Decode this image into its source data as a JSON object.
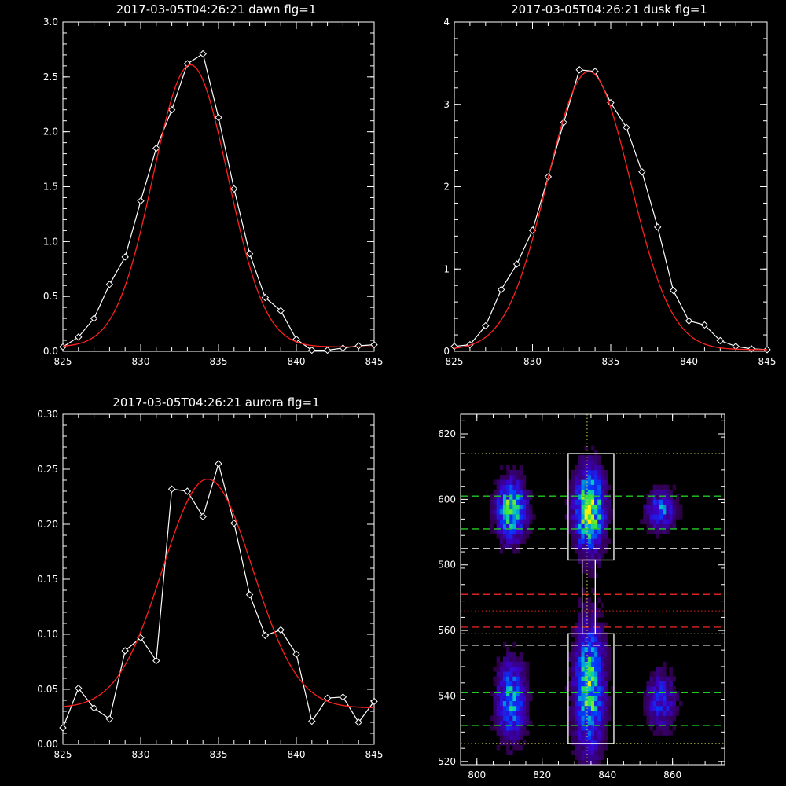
{
  "colors": {
    "background": "#000000",
    "axes": "#ffffff",
    "data": "#ffffff",
    "fit": "#ff2020",
    "guide_green": "#22cc22",
    "guide_red": "#dd2222",
    "guide_white": "#ffffff",
    "guide_yellow": "#dddd55"
  },
  "chart_data": [
    {
      "type": "line",
      "title": "2017-03-05T04:26:21 dawn flg=1",
      "xlim": [
        825,
        845
      ],
      "ylim": [
        0,
        3.0
      ],
      "xticks": [
        "825",
        "830",
        "835",
        "840",
        "845"
      ],
      "yticks": [
        "0.0",
        "0.5",
        "1.0",
        "1.5",
        "2.0",
        "2.5",
        "3.0"
      ],
      "series": [
        {
          "style": "data",
          "x": [
            825,
            826,
            827,
            828,
            829,
            830,
            831,
            832,
            833,
            834,
            835,
            836,
            837,
            838,
            839,
            840,
            841,
            842,
            843,
            844,
            845
          ],
          "y": [
            0.04,
            0.13,
            0.3,
            0.61,
            0.86,
            1.37,
            1.85,
            2.2,
            2.62,
            2.71,
            2.13,
            1.48,
            0.89,
            0.49,
            0.37,
            0.11,
            0.01,
            0.01,
            0.03,
            0.05,
            0.06
          ]
        },
        {
          "style": "fit",
          "gauss": {
            "a": 2.57,
            "mu": 833.2,
            "sigma": 2.4,
            "c": 0.04
          }
        }
      ]
    },
    {
      "type": "line",
      "title": "2017-03-05T04:26:21 dusk flg=1",
      "xlim": [
        825,
        845
      ],
      "ylim": [
        0,
        4
      ],
      "xticks": [
        "825",
        "830",
        "835",
        "840",
        "845"
      ],
      "yticks": [
        "0",
        "1",
        "2",
        "3",
        "4"
      ],
      "series": [
        {
          "style": "data",
          "x": [
            825,
            826,
            827,
            828,
            829,
            830,
            831,
            832,
            833,
            834,
            835,
            836,
            837,
            838,
            839,
            840,
            841,
            842,
            843,
            844,
            845
          ],
          "y": [
            0.06,
            0.08,
            0.31,
            0.75,
            1.06,
            1.47,
            2.12,
            2.78,
            3.42,
            3.4,
            3.02,
            2.72,
            2.18,
            1.51,
            0.74,
            0.37,
            0.32,
            0.13,
            0.06,
            0.03,
            0.02
          ]
        },
        {
          "style": "fit",
          "gauss": {
            "a": 3.38,
            "mu": 833.6,
            "sigma": 2.65,
            "c": 0.02
          }
        }
      ]
    },
    {
      "type": "line",
      "title": "2017-03-05T04:26:21 aurora flg=1",
      "xlim": [
        825,
        845
      ],
      "ylim": [
        0,
        0.3
      ],
      "xticks": [
        "825",
        "830",
        "835",
        "840",
        "845"
      ],
      "yticks": [
        "0.00",
        "0.05",
        "0.10",
        "0.15",
        "0.20",
        "0.25",
        "0.30"
      ],
      "series": [
        {
          "style": "data",
          "x": [
            825,
            826,
            827,
            828,
            829,
            830,
            831,
            832,
            833,
            834,
            835,
            836,
            837,
            838,
            839,
            840,
            841,
            842,
            843,
            844,
            845
          ],
          "y": [
            0.015,
            0.051,
            0.033,
            0.023,
            0.085,
            0.097,
            0.076,
            0.232,
            0.23,
            0.207,
            0.255,
            0.201,
            0.136,
            0.099,
            0.104,
            0.082,
            0.021,
            0.042,
            0.043,
            0.02,
            0.039
          ]
        },
        {
          "style": "fit",
          "gauss": {
            "a": 0.208,
            "mu": 834.3,
            "sigma": 2.9,
            "c": 0.033
          }
        }
      ]
    },
    {
      "type": "heatmap",
      "title": "",
      "xlim": [
        795,
        876
      ],
      "ylim": [
        519,
        626
      ],
      "xticks": [
        "800",
        "820",
        "840",
        "860"
      ],
      "yticks": [
        "520",
        "540",
        "560",
        "580",
        "600",
        "620"
      ],
      "blobs": [
        {
          "x": 810,
          "y": 596,
          "sx": 3.0,
          "sy": 6.0,
          "amp": 0.8
        },
        {
          "x": 834,
          "y": 596,
          "sx": 3.0,
          "sy": 8.0,
          "amp": 1.0
        },
        {
          "x": 856,
          "y": 596,
          "sx": 3.0,
          "sy": 4.0,
          "amp": 0.5
        },
        {
          "x": 810,
          "y": 538,
          "sx": 3.0,
          "sy": 8.0,
          "amp": 0.6
        },
        {
          "x": 834,
          "y": 542,
          "sx": 3.0,
          "sy": 13.0,
          "amp": 0.8
        },
        {
          "x": 856,
          "y": 538,
          "sx": 3.0,
          "sy": 6.0,
          "amp": 0.4
        }
      ],
      "boxes": [
        {
          "x0": 828,
          "x1": 842,
          "y0": 581.5,
          "y1": 614
        },
        {
          "x0": 828,
          "x1": 842,
          "y0": 525.5,
          "y1": 559
        },
        {
          "x0": 832.3,
          "x1": 836.3,
          "y0": 559,
          "y1": 581.5
        }
      ],
      "hlines": [
        {
          "y": 614,
          "style": "dotted",
          "color": "guide_yellow"
        },
        {
          "y": 601,
          "style": "dashed",
          "color": "guide_green"
        },
        {
          "y": 591,
          "style": "dashed",
          "color": "guide_green"
        },
        {
          "y": 585,
          "style": "dashed",
          "color": "guide_white"
        },
        {
          "y": 581.5,
          "style": "dotted",
          "color": "guide_yellow"
        },
        {
          "y": 571,
          "style": "dashed",
          "color": "guide_red"
        },
        {
          "y": 566,
          "style": "dotted",
          "color": "guide_red"
        },
        {
          "y": 561,
          "style": "dashed",
          "color": "guide_red"
        },
        {
          "y": 559,
          "style": "dotted",
          "color": "guide_yellow"
        },
        {
          "y": 555.5,
          "style": "dashed",
          "color": "guide_white"
        },
        {
          "y": 541,
          "style": "dashed",
          "color": "guide_green"
        },
        {
          "y": 531,
          "style": "dashed",
          "color": "guide_green"
        },
        {
          "y": 525.5,
          "style": "dotted",
          "color": "guide_yellow"
        }
      ],
      "vline": {
        "x": 833.8,
        "style": "dotted"
      }
    }
  ]
}
